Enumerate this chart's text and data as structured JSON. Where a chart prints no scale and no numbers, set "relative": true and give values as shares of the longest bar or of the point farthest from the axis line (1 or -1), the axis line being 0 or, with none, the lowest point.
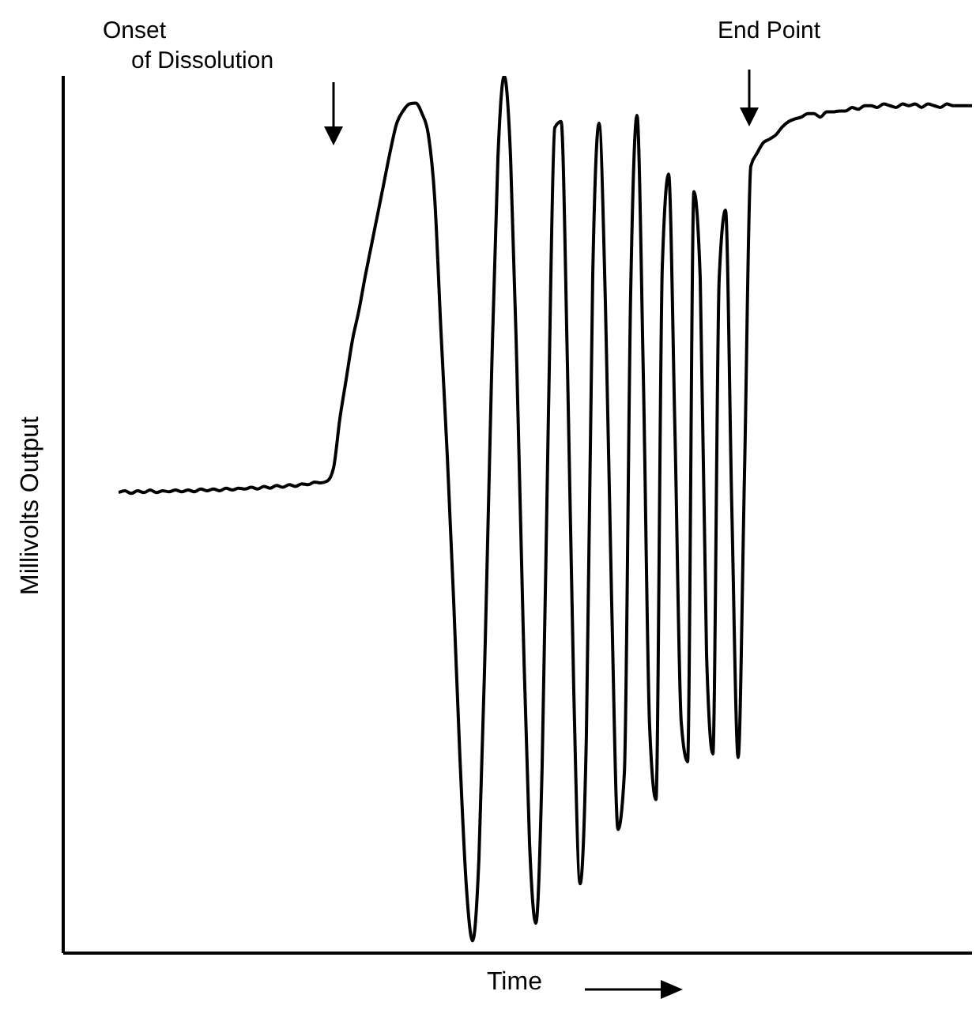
{
  "chart_data": {
    "type": "line",
    "relative": true,
    "xlabel": "Time",
    "ylabel": "Millivolts Output",
    "categories": [
      null,
      null,
      null,
      null,
      null,
      null,
      null,
      null,
      null,
      null,
      null,
      null,
      null,
      null,
      null,
      null,
      null,
      null,
      null,
      null,
      null,
      null,
      null,
      null,
      null,
      null,
      null,
      null,
      null,
      null,
      null,
      null,
      null,
      null,
      null,
      null,
      null,
      null,
      null,
      null,
      null,
      null,
      null,
      null,
      null,
      null,
      null,
      null,
      null,
      null,
      null,
      null,
      null,
      null,
      null,
      null,
      null,
      null,
      null,
      null,
      null,
      null,
      null,
      null,
      null,
      null,
      null,
      null,
      null,
      null,
      null,
      null,
      null,
      null,
      null,
      null,
      null,
      null,
      null,
      null,
      null,
      null,
      null,
      null,
      null,
      null,
      null,
      null,
      null,
      null,
      null,
      null,
      null,
      null,
      null,
      null,
      null,
      null,
      null,
      null,
      null,
      null,
      null,
      null,
      null,
      null,
      null,
      null,
      null,
      null,
      null,
      null,
      null,
      null,
      null,
      null,
      null,
      null,
      null,
      null,
      null,
      null,
      null,
      null,
      null,
      null,
      null,
      null,
      null,
      null,
      null,
      null,
      null,
      null,
      null,
      null
    ],
    "annotations": [
      "Onset\nof Dissolution",
      "End Point"
    ],
    "series": [
      {
        "color": "#000000",
        "values": [
          0.525,
          0.527,
          0.524,
          0.527,
          0.525,
          0.528,
          0.525,
          0.527,
          0.526,
          0.528,
          0.526,
          0.528,
          0.526,
          0.529,
          0.527,
          0.529,
          0.527,
          0.53,
          0.528,
          0.53,
          0.529,
          0.531,
          0.529,
          0.532,
          0.53,
          0.533,
          0.531,
          0.534,
          0.532,
          0.535,
          0.534,
          0.537,
          0.536,
          0.538,
          0.553,
          0.609,
          0.654,
          0.699,
          0.732,
          0.771,
          0.807,
          0.843,
          0.879,
          0.915,
          0.946,
          0.96,
          0.968,
          0.969,
          0.957,
          0.933,
          0.861,
          0.708,
          0.566,
          0.402,
          0.222,
          0.077,
          0.014,
          0.108,
          0.355,
          0.659,
          0.906,
          1.0,
          0.908,
          0.667,
          0.37,
          0.126,
          0.034,
          0.214,
          0.617,
          0.941,
          0.948,
          0.67,
          0.299,
          0.079,
          0.25,
          0.773,
          0.946,
          0.742,
          0.398,
          0.141,
          0.205,
          0.753,
          0.955,
          0.659,
          0.258,
          0.175,
          0.782,
          0.888,
          0.596,
          0.263,
          0.218,
          0.868,
          0.769,
          0.341,
          0.227,
          0.769,
          0.847,
          0.506,
          0.223,
          0.546,
          0.897,
          0.912,
          0.924,
          0.928,
          0.933,
          0.942,
          0.948,
          0.951,
          0.953,
          0.957,
          0.957,
          0.953,
          0.959,
          0.959,
          0.96,
          0.96,
          0.964,
          0.962,
          0.966,
          0.966,
          0.964,
          0.968,
          0.966,
          0.964,
          0.968,
          0.966,
          0.968,
          0.964,
          0.968,
          0.966,
          0.964,
          0.968,
          0.966,
          0.966,
          0.966,
          0.966
        ]
      }
    ]
  }
}
